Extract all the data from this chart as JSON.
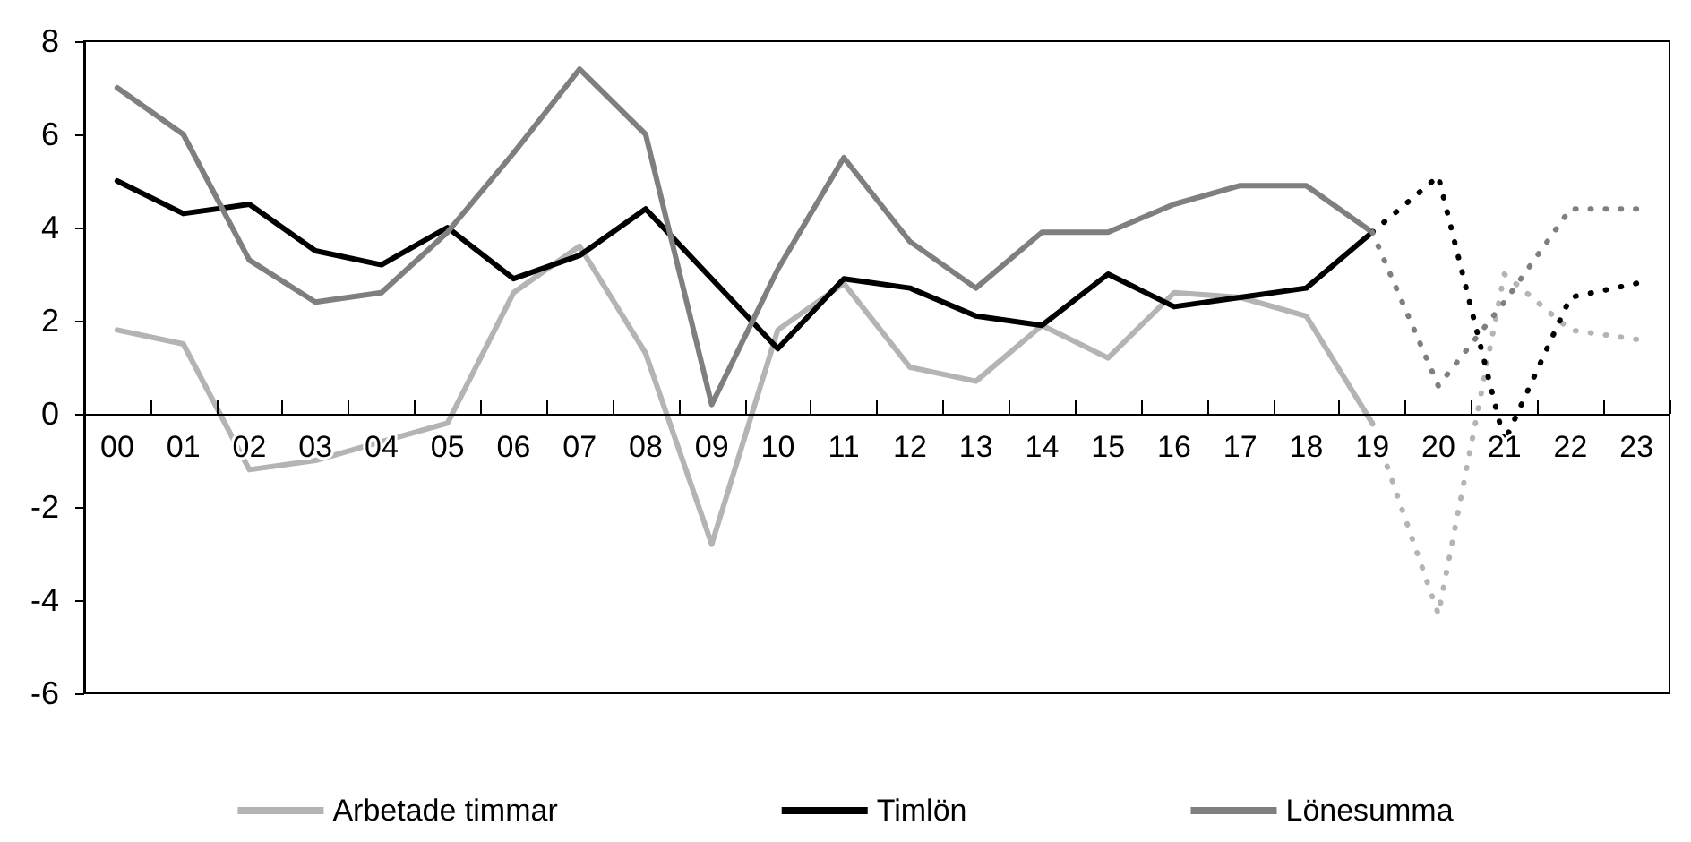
{
  "chart_data": {
    "type": "line",
    "categories": [
      "00",
      "01",
      "02",
      "03",
      "04",
      "05",
      "06",
      "07",
      "08",
      "09",
      "10",
      "11",
      "12",
      "13",
      "14",
      "15",
      "16",
      "17",
      "18",
      "19",
      "20",
      "21",
      "22",
      "23"
    ],
    "ylim": [
      -6,
      8
    ],
    "yticks": [
      -6,
      -4,
      -2,
      0,
      2,
      4,
      6,
      8
    ],
    "legend": "bottom",
    "marker": "none",
    "series": [
      {
        "name": "Arbetade timmar",
        "color": "#b4b4b4",
        "line_style": "solid",
        "values": [
          1.8,
          1.5,
          -1.2,
          -1.0,
          -0.6,
          -0.2,
          2.6,
          3.6,
          1.3,
          -2.8,
          1.8,
          2.8,
          1.0,
          0.7,
          1.9,
          1.2,
          2.6,
          2.5,
          2.1,
          -0.2,
          null,
          null,
          null,
          null
        ]
      },
      {
        "name": "Timlön",
        "color": "#000000",
        "line_style": "solid",
        "values": [
          5.0,
          4.3,
          4.5,
          3.5,
          3.2,
          4.0,
          2.9,
          3.4,
          4.4,
          2.9,
          1.4,
          2.9,
          2.7,
          2.1,
          1.9,
          3.0,
          2.3,
          2.5,
          2.7,
          3.9,
          null,
          null,
          null,
          null
        ]
      },
      {
        "name": "Lönesumma",
        "color": "#7f7f7f",
        "line_style": "solid",
        "values": [
          7.0,
          6.0,
          3.3,
          2.4,
          2.6,
          3.9,
          5.6,
          7.4,
          6.0,
          0.2,
          3.1,
          5.5,
          3.7,
          2.7,
          3.9,
          3.9,
          4.5,
          4.9,
          4.9,
          3.9,
          null,
          null,
          null,
          null
        ]
      },
      {
        "color": "#b4b4b4",
        "line_style": "dotted",
        "values": [
          null,
          null,
          null,
          null,
          null,
          null,
          null,
          null,
          null,
          null,
          null,
          null,
          null,
          null,
          null,
          null,
          null,
          null,
          null,
          -0.2,
          -4.3,
          3.0,
          1.8,
          1.6
        ]
      },
      {
        "color": "#000000",
        "line_style": "dotted",
        "values": [
          null,
          null,
          null,
          null,
          null,
          null,
          null,
          null,
          null,
          null,
          null,
          null,
          null,
          null,
          null,
          null,
          null,
          null,
          null,
          3.9,
          5.1,
          -0.6,
          2.5,
          2.8
        ]
      },
      {
        "color": "#7f7f7f",
        "line_style": "dotted",
        "values": [
          null,
          null,
          null,
          null,
          null,
          null,
          null,
          null,
          null,
          null,
          null,
          null,
          null,
          null,
          null,
          null,
          null,
          null,
          null,
          3.9,
          0.6,
          2.4,
          4.4,
          4.4
        ]
      }
    ]
  }
}
